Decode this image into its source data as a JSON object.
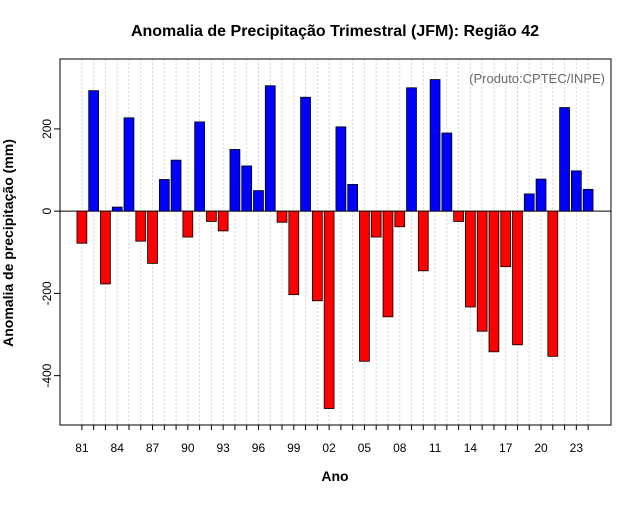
{
  "chart_data": {
    "type": "bar",
    "title": "Anomalia de Precipitação Trimestral (JFM): Região 42",
    "xlabel": "Ano",
    "ylabel": "Anomalia de precipitação (mm)",
    "annotation": "(Produto:CPTEC/INPE)",
    "ylim": [
      -520,
      370
    ],
    "yticks": [
      -400,
      -200,
      0,
      200
    ],
    "ytick_labels": [
      "-400",
      "-200",
      "0",
      "200"
    ],
    "xtick_labels": [
      "81",
      "84",
      "87",
      "90",
      "93",
      "96",
      "99",
      "02",
      "05",
      "08",
      "11",
      "14",
      "17",
      "20",
      "23"
    ],
    "xtick_every": 3,
    "years": [
      1981,
      1982,
      1983,
      1984,
      1985,
      1986,
      1987,
      1988,
      1989,
      1990,
      1991,
      1992,
      1993,
      1994,
      1995,
      1996,
      1997,
      1998,
      1999,
      2000,
      2001,
      2002,
      2003,
      2004,
      2005,
      2006,
      2007,
      2008,
      2009,
      2010,
      2011,
      2012,
      2013,
      2014,
      2015,
      2016,
      2017,
      2018,
      2019,
      2020,
      2021,
      2022,
      2023,
      2024
    ],
    "values": [
      -78,
      293,
      -177,
      10,
      227,
      -73,
      -127,
      77,
      124,
      -63,
      217,
      -25,
      -48,
      150,
      110,
      50,
      305,
      -27,
      -203,
      277,
      -218,
      -480,
      205,
      65,
      -365,
      -63,
      -257,
      -38,
      300,
      -145,
      320,
      190,
      -25,
      -233,
      -292,
      -342,
      -135,
      -325,
      42,
      78,
      -353,
      252,
      98,
      53
    ],
    "positive_color": "#0000ff",
    "negative_color": "#ff0000",
    "grid": true
  }
}
